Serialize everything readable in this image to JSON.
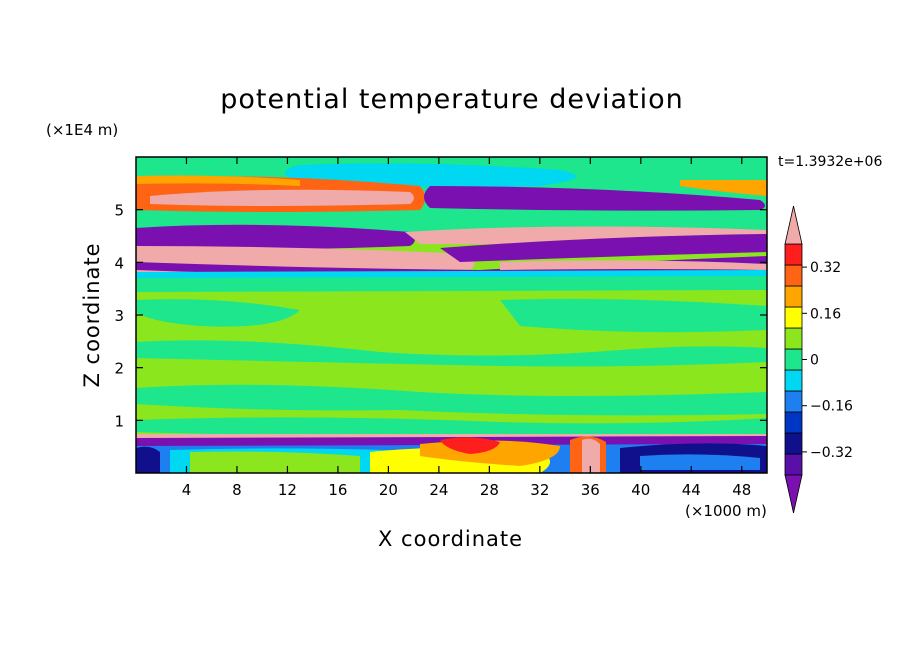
{
  "chart_data": {
    "type": "heatmap",
    "title": "potential temperature deviation",
    "xlabel": "X coordinate",
    "ylabel": "Z coordinate",
    "x_unit_label": "(×1000 m)",
    "y_unit_label": "(×1E4 m)",
    "timestamp_label": "t=1.3932e+06",
    "xlim": [
      0,
      50
    ],
    "ylim": [
      0,
      6
    ],
    "x_ticks": [
      4,
      8,
      12,
      16,
      20,
      24,
      28,
      32,
      36,
      40,
      44,
      48
    ],
    "y_ticks": [
      1,
      2,
      3,
      4,
      5
    ],
    "colorbar": {
      "levels": [
        -0.48,
        -0.4,
        -0.32,
        -0.24,
        -0.16,
        -0.08,
        0,
        0.08,
        0.16,
        0.24,
        0.32,
        0.4,
        0.48
      ],
      "tick_labels": [
        "0.32",
        "0.16",
        "0",
        "−0.16",
        "−0.32"
      ],
      "tick_values": [
        0.32,
        0.16,
        0,
        -0.16,
        -0.32
      ],
      "colors": [
        "#7a10b0",
        "#5a0fa8",
        "#10108c",
        "#0036c4",
        "#1e7ff0",
        "#00d7f0",
        "#1ee68c",
        "#8ce61e",
        "#ffff00",
        "#ffa500",
        "#ff6414",
        "#ff1e1e",
        "#f0aaaa"
      ],
      "extend": "both"
    },
    "background_color": "#8ce61e"
  }
}
